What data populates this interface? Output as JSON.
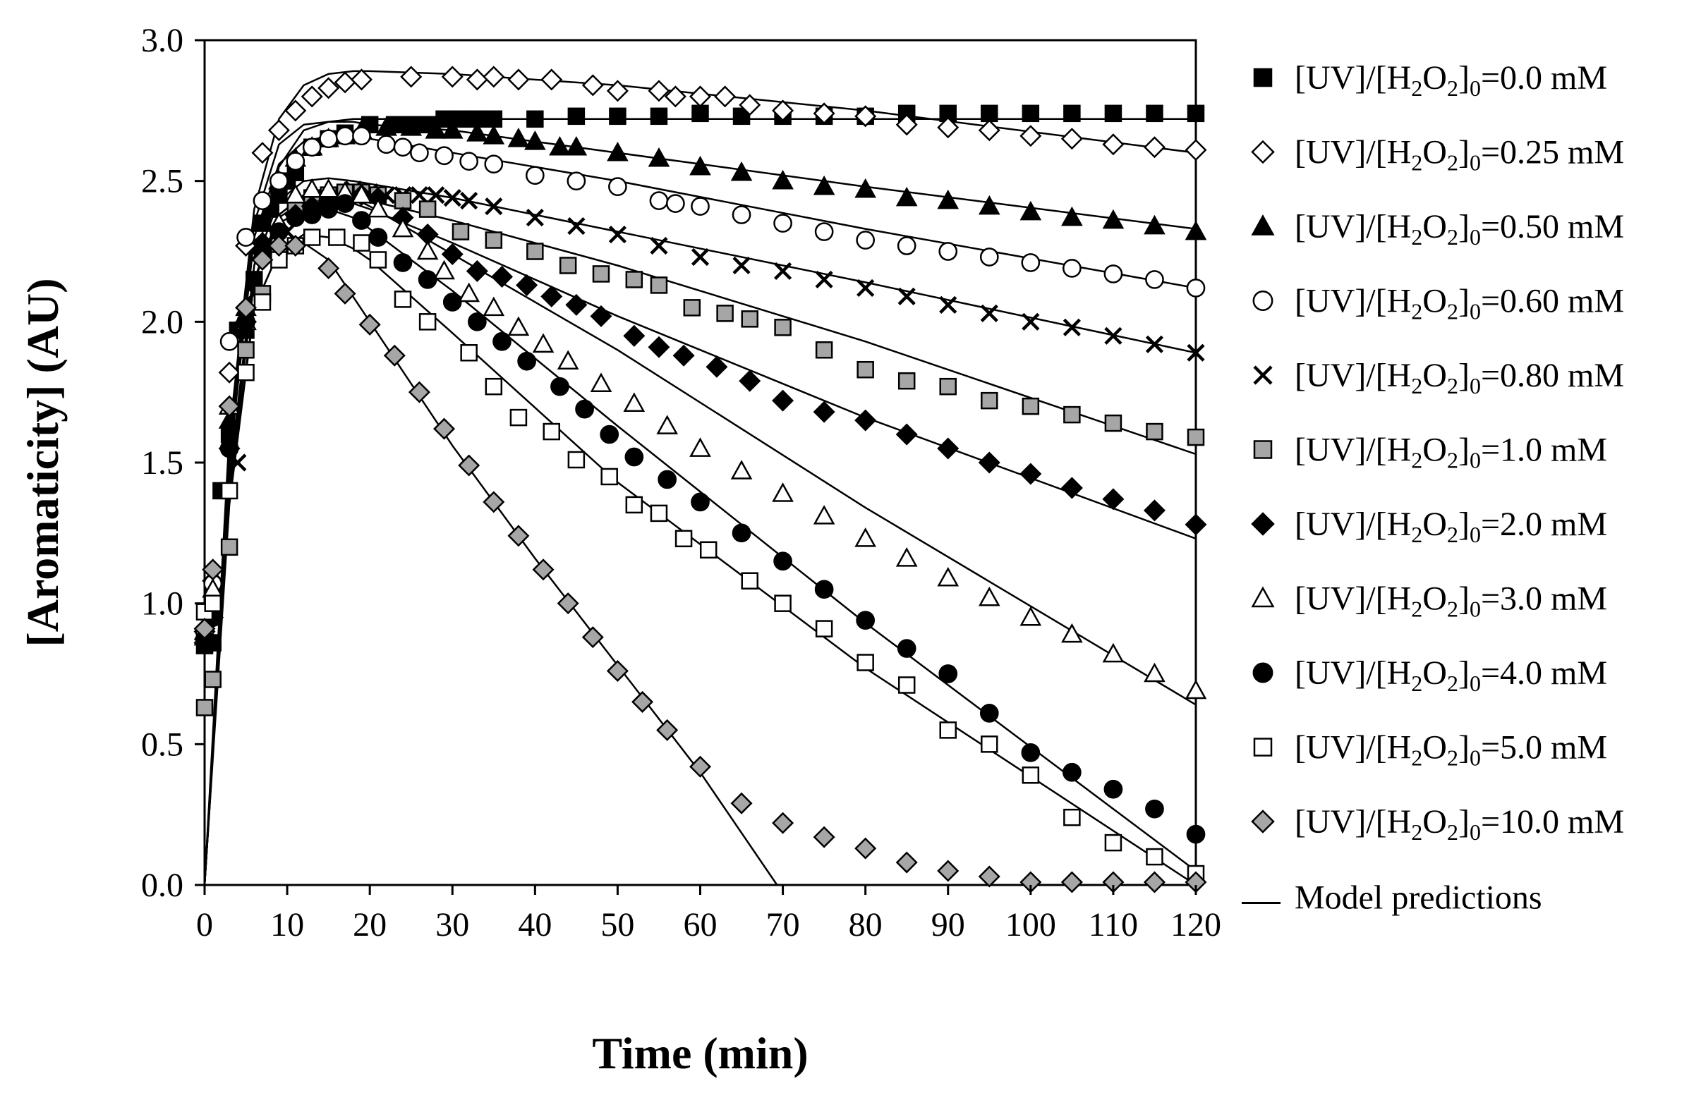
{
  "chart_data": {
    "type": "scatter",
    "xlabel": "Time (min)",
    "ylabel": "[Aromaticity] (AU)",
    "xlim": [
      0,
      120
    ],
    "ylim": [
      0,
      3
    ],
    "xticks": [
      0,
      10,
      20,
      30,
      40,
      50,
      60,
      70,
      80,
      90,
      100,
      110,
      120
    ],
    "yticks": [
      0.0,
      0.5,
      1.0,
      1.5,
      2.0,
      2.5,
      3.0
    ],
    "xtick_labels": [
      "0",
      "10",
      "20",
      "30",
      "40",
      "50",
      "60",
      "70",
      "80",
      "90",
      "100",
      "110",
      "120"
    ],
    "ytick_labels": [
      "0.0",
      "0.5",
      "1.0",
      "1.5",
      "2.0",
      "2.5",
      "3.0"
    ],
    "grid": false,
    "legend_position": "right",
    "legend_model": "Model predictions",
    "series": [
      {
        "name": "0.0 mM",
        "marker": "square",
        "fill": "#000000",
        "x": [
          0,
          1,
          2,
          3,
          4,
          5,
          6,
          7,
          8,
          9,
          10,
          11,
          13,
          15,
          17,
          20,
          23,
          25,
          27,
          29,
          31,
          33,
          35,
          40,
          45,
          50,
          55,
          60,
          65,
          70,
          75,
          80,
          85,
          90,
          95,
          100,
          105,
          110,
          115,
          120
        ],
        "y": [
          0.85,
          0.86,
          1.4,
          1.6,
          1.97,
          1.97,
          2.15,
          2.35,
          2.4,
          2.45,
          2.5,
          2.53,
          2.62,
          2.65,
          2.67,
          2.7,
          2.7,
          2.7,
          2.7,
          2.72,
          2.72,
          2.72,
          2.72,
          2.72,
          2.73,
          2.73,
          2.73,
          2.74,
          2.73,
          2.73,
          2.73,
          2.73,
          2.74,
          2.74,
          2.74,
          2.74,
          2.74,
          2.74,
          2.74,
          2.74
        ]
      },
      {
        "name": "0.25 mM",
        "marker": "diamond-open",
        "fill": "#ffffff",
        "x": [
          0,
          1,
          3,
          5,
          7,
          9,
          11,
          13,
          15,
          17,
          19,
          25,
          30,
          33,
          35,
          38,
          42,
          47,
          50,
          55,
          57,
          60,
          63,
          66,
          70,
          75,
          80,
          85,
          90,
          95,
          100,
          105,
          110,
          115,
          120
        ],
        "y": [
          0.9,
          1.08,
          1.82,
          2.27,
          2.6,
          2.68,
          2.75,
          2.8,
          2.83,
          2.85,
          2.86,
          2.87,
          2.87,
          2.86,
          2.87,
          2.86,
          2.86,
          2.84,
          2.82,
          2.82,
          2.8,
          2.8,
          2.8,
          2.77,
          2.75,
          2.74,
          2.73,
          2.7,
          2.69,
          2.68,
          2.66,
          2.65,
          2.63,
          2.62,
          2.61
        ]
      },
      {
        "name": "0.50 mM",
        "marker": "triangle",
        "fill": "#000000",
        "x": [
          0,
          1,
          3,
          5,
          7,
          9,
          11,
          13,
          15,
          17,
          19,
          22,
          25,
          28,
          30,
          33,
          35,
          38,
          40,
          43,
          45,
          50,
          55,
          60,
          65,
          70,
          75,
          80,
          85,
          90,
          95,
          100,
          105,
          110,
          115,
          120
        ],
        "y": [
          0.88,
          1.05,
          1.65,
          2.05,
          2.35,
          2.5,
          2.58,
          2.62,
          2.65,
          2.66,
          2.68,
          2.69,
          2.69,
          2.68,
          2.68,
          2.67,
          2.66,
          2.65,
          2.64,
          2.62,
          2.62,
          2.6,
          2.58,
          2.55,
          2.53,
          2.5,
          2.48,
          2.47,
          2.44,
          2.43,
          2.41,
          2.39,
          2.37,
          2.36,
          2.34,
          2.32
        ]
      },
      {
        "name": "0.60 mM",
        "marker": "circle-open",
        "fill": "#ffffff",
        "x": [
          0,
          1,
          3,
          5,
          7,
          9,
          11,
          13,
          15,
          17,
          19,
          22,
          24,
          26,
          29,
          32,
          35,
          40,
          45,
          50,
          55,
          57,
          60,
          65,
          70,
          75,
          80,
          85,
          90,
          95,
          100,
          105,
          110,
          115,
          120
        ],
        "y": [
          0.9,
          1.07,
          1.93,
          2.3,
          2.43,
          2.5,
          2.57,
          2.62,
          2.65,
          2.66,
          2.66,
          2.63,
          2.62,
          2.6,
          2.59,
          2.57,
          2.56,
          2.52,
          2.5,
          2.48,
          2.43,
          2.42,
          2.41,
          2.38,
          2.35,
          2.32,
          2.29,
          2.27,
          2.25,
          2.23,
          2.21,
          2.19,
          2.17,
          2.15,
          2.12
        ]
      },
      {
        "name": "0.80 mM",
        "marker": "x",
        "fill": "#000000",
        "x": [
          0,
          1,
          4,
          6,
          8,
          10,
          12,
          14,
          16,
          18,
          20,
          22,
          24,
          26,
          28,
          30,
          32,
          35,
          40,
          45,
          50,
          55,
          60,
          65,
          70,
          75,
          80,
          85,
          90,
          95,
          100,
          105,
          110,
          115,
          120
        ],
        "y": [
          0.85,
          1.02,
          1.5,
          2.1,
          2.25,
          2.32,
          2.38,
          2.42,
          2.45,
          2.47,
          2.46,
          2.45,
          2.45,
          2.45,
          2.45,
          2.44,
          2.43,
          2.41,
          2.37,
          2.34,
          2.31,
          2.27,
          2.23,
          2.2,
          2.18,
          2.15,
          2.12,
          2.09,
          2.06,
          2.03,
          2.0,
          1.98,
          1.95,
          1.92,
          1.89
        ]
      },
      {
        "name": "1.0 mM",
        "marker": "square",
        "fill": "#a6a6a6",
        "x": [
          0,
          1,
          3,
          5,
          7,
          9,
          11,
          13,
          15,
          17,
          19,
          21,
          24,
          27,
          31,
          35,
          40,
          44,
          48,
          52,
          55,
          59,
          63,
          66,
          70,
          75,
          80,
          85,
          90,
          95,
          100,
          105,
          110,
          115,
          120
        ],
        "y": [
          0.63,
          0.73,
          1.2,
          1.9,
          2.1,
          2.25,
          2.4,
          2.44,
          2.45,
          2.46,
          2.46,
          2.45,
          2.43,
          2.4,
          2.32,
          2.29,
          2.25,
          2.2,
          2.17,
          2.15,
          2.13,
          2.05,
          2.03,
          2.01,
          1.98,
          1.9,
          1.83,
          1.79,
          1.77,
          1.72,
          1.7,
          1.67,
          1.64,
          1.61,
          1.59
        ]
      },
      {
        "name": "2.0 mM",
        "marker": "diamond",
        "fill": "#000000",
        "x": [
          0,
          1,
          3,
          5,
          7,
          9,
          11,
          13,
          15,
          17,
          19,
          21,
          24,
          27,
          30,
          33,
          36,
          39,
          42,
          45,
          48,
          52,
          55,
          58,
          62,
          66,
          70,
          75,
          80,
          85,
          90,
          95,
          100,
          105,
          110,
          115,
          120
        ],
        "y": [
          0.86,
          0.95,
          1.55,
          2.0,
          2.28,
          2.33,
          2.38,
          2.41,
          2.43,
          2.44,
          2.45,
          2.44,
          2.37,
          2.31,
          2.24,
          2.18,
          2.16,
          2.13,
          2.09,
          2.06,
          2.02,
          1.95,
          1.91,
          1.88,
          1.84,
          1.79,
          1.72,
          1.68,
          1.65,
          1.6,
          1.55,
          1.5,
          1.46,
          1.41,
          1.37,
          1.33,
          1.28
        ]
      },
      {
        "name": "3.0 mM",
        "marker": "triangle-open",
        "fill": "#ffffff",
        "x": [
          0,
          1,
          3,
          5,
          7,
          9,
          11,
          13,
          15,
          17,
          19,
          21,
          24,
          27,
          29,
          32,
          35,
          38,
          41,
          44,
          48,
          52,
          56,
          60,
          65,
          70,
          75,
          80,
          85,
          90,
          95,
          100,
          105,
          110,
          115,
          120
        ],
        "y": [
          0.9,
          1.05,
          1.7,
          2.0,
          2.25,
          2.35,
          2.45,
          2.47,
          2.47,
          2.46,
          2.45,
          2.4,
          2.33,
          2.25,
          2.18,
          2.1,
          2.05,
          1.98,
          1.92,
          1.86,
          1.78,
          1.71,
          1.63,
          1.55,
          1.47,
          1.39,
          1.31,
          1.23,
          1.16,
          1.09,
          1.02,
          0.95,
          0.89,
          0.82,
          0.75,
          0.69
        ]
      },
      {
        "name": "4.0 mM",
        "marker": "circle",
        "fill": "#000000",
        "x": [
          0,
          1,
          3,
          5,
          7,
          9,
          11,
          13,
          15,
          17,
          19,
          21,
          24,
          27,
          30,
          33,
          36,
          39,
          43,
          46,
          49,
          52,
          56,
          60,
          65,
          70,
          75,
          80,
          85,
          90,
          95,
          100,
          105,
          110,
          115,
          120
        ],
        "y": [
          0.87,
          0.95,
          1.55,
          2.0,
          2.25,
          2.32,
          2.37,
          2.38,
          2.4,
          2.42,
          2.36,
          2.3,
          2.21,
          2.15,
          2.07,
          2.0,
          1.93,
          1.86,
          1.77,
          1.69,
          1.6,
          1.52,
          1.44,
          1.36,
          1.25,
          1.15,
          1.05,
          0.94,
          0.84,
          0.75,
          0.61,
          0.47,
          0.4,
          0.34,
          0.27,
          0.18
        ]
      },
      {
        "name": "5.0 mM",
        "marker": "square-open",
        "fill": "#ffffff",
        "x": [
          0,
          1,
          3,
          5,
          7,
          9,
          11,
          13,
          16,
          19,
          21,
          24,
          27,
          32,
          35,
          38,
          42,
          45,
          49,
          52,
          55,
          58,
          61,
          66,
          70,
          75,
          80,
          85,
          90,
          95,
          100,
          105,
          110,
          115,
          120
        ],
        "y": [
          0.97,
          1.0,
          1.4,
          1.82,
          2.07,
          2.22,
          2.27,
          2.3,
          2.3,
          2.28,
          2.22,
          2.08,
          2.0,
          1.89,
          1.77,
          1.66,
          1.61,
          1.51,
          1.45,
          1.35,
          1.32,
          1.23,
          1.19,
          1.08,
          1.0,
          0.91,
          0.79,
          0.71,
          0.55,
          0.5,
          0.39,
          0.24,
          0.15,
          0.1,
          0.04
        ]
      },
      {
        "name": "10.0 mM",
        "marker": "diamond",
        "fill": "#a6a6a6",
        "x": [
          0,
          1,
          3,
          5,
          7,
          9,
          11,
          15,
          17,
          20,
          23,
          26,
          29,
          32,
          35,
          38,
          41,
          44,
          47,
          50,
          53,
          56,
          60,
          65,
          70,
          75,
          80,
          85,
          90,
          95,
          100,
          105,
          110,
          115,
          120
        ],
        "y": [
          0.91,
          1.12,
          1.7,
          2.05,
          2.22,
          2.27,
          2.27,
          2.19,
          2.1,
          1.99,
          1.88,
          1.75,
          1.62,
          1.49,
          1.36,
          1.24,
          1.12,
          1.0,
          0.88,
          0.76,
          0.65,
          0.55,
          0.42,
          0.29,
          0.22,
          0.17,
          0.13,
          0.08,
          0.05,
          0.03,
          0.01,
          0.01,
          0.01,
          0.01,
          0.01
        ]
      }
    ],
    "model_lines": [
      {
        "x": [
          0,
          3,
          6,
          9,
          12,
          15,
          18,
          20,
          30,
          50,
          80,
          120
        ],
        "y": [
          0.0,
          1.4,
          2.2,
          2.55,
          2.68,
          2.71,
          2.72,
          2.72,
          2.72,
          2.72,
          2.72,
          2.72
        ]
      },
      {
        "x": [
          0,
          3,
          6,
          9,
          12,
          15,
          18,
          20,
          30,
          50,
          80,
          120
        ],
        "y": [
          0.0,
          1.6,
          2.4,
          2.72,
          2.84,
          2.88,
          2.89,
          2.89,
          2.88,
          2.84,
          2.75,
          2.6
        ]
      },
      {
        "x": [
          0,
          3,
          6,
          9,
          12,
          15,
          18,
          20,
          30,
          50,
          80,
          120
        ],
        "y": [
          0.0,
          1.55,
          2.35,
          2.63,
          2.7,
          2.71,
          2.71,
          2.7,
          2.68,
          2.6,
          2.48,
          2.33
        ]
      },
      {
        "x": [
          0,
          3,
          6,
          9,
          12,
          15,
          18,
          20,
          30,
          50,
          80,
          120
        ],
        "y": [
          0.0,
          1.5,
          2.3,
          2.56,
          2.64,
          2.66,
          2.66,
          2.65,
          2.6,
          2.5,
          2.33,
          2.12
        ]
      },
      {
        "x": [
          0,
          3,
          6,
          9,
          12,
          15,
          18,
          20,
          30,
          50,
          80,
          120
        ],
        "y": [
          0.0,
          1.45,
          2.2,
          2.43,
          2.5,
          2.51,
          2.5,
          2.49,
          2.44,
          2.32,
          2.14,
          1.89
        ]
      },
      {
        "x": [
          0,
          3,
          6,
          9,
          12,
          15,
          18,
          20,
          30,
          50,
          80,
          120
        ],
        "y": [
          0.0,
          1.4,
          2.15,
          2.38,
          2.45,
          2.46,
          2.45,
          2.43,
          2.36,
          2.2,
          1.93,
          1.53
        ]
      },
      {
        "x": [
          0,
          3,
          6,
          9,
          12,
          15,
          18,
          20,
          30,
          50,
          80,
          120
        ],
        "y": [
          0.0,
          1.4,
          2.15,
          2.37,
          2.43,
          2.44,
          2.42,
          2.4,
          2.28,
          2.02,
          1.66,
          1.23
        ]
      },
      {
        "x": [
          0,
          3,
          6,
          9,
          12,
          15,
          18,
          20,
          30,
          50,
          80,
          120
        ],
        "y": [
          0.0,
          1.4,
          2.15,
          2.38,
          2.45,
          2.46,
          2.44,
          2.41,
          2.24,
          1.9,
          1.34,
          0.64
        ]
      },
      {
        "x": [
          0,
          3,
          6,
          9,
          12,
          15,
          18,
          20,
          30,
          50,
          80,
          120
        ],
        "y": [
          0.0,
          1.4,
          2.15,
          2.35,
          2.4,
          2.4,
          2.37,
          2.33,
          2.11,
          1.63,
          0.93,
          0.05
        ]
      },
      {
        "x": [
          0,
          3,
          6,
          9,
          12,
          15,
          18,
          20,
          30,
          50,
          80,
          120
        ],
        "y": [
          0.0,
          1.35,
          2.05,
          2.25,
          2.31,
          2.3,
          2.26,
          2.22,
          1.96,
          1.43,
          0.77,
          0.0
        ]
      },
      {
        "x": [
          0,
          3,
          6,
          9,
          12,
          15,
          20,
          30,
          40,
          50,
          60,
          69.3
        ],
        "y": [
          0.0,
          1.4,
          2.05,
          2.25,
          2.28,
          2.22,
          2.0,
          1.56,
          1.16,
          0.78,
          0.4,
          0.0
        ]
      }
    ]
  }
}
